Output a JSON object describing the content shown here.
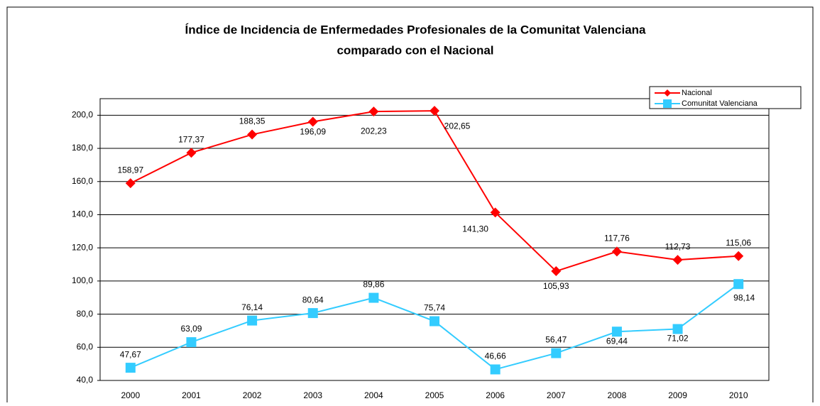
{
  "chart_data": {
    "type": "line",
    "title": "Índice de Incidencia de Enfermedades Profesionales de la Comunitat Valenciana",
    "subtitle": "comparado con el Nacional",
    "categories": [
      "2000",
      "2001",
      "2002",
      "2003",
      "2004",
      "2005",
      "2006",
      "2007",
      "2008",
      "2009",
      "2010"
    ],
    "series": [
      {
        "name": "Nacional",
        "color": "#ff0000",
        "marker": "diamond",
        "values": [
          158.97,
          177.37,
          188.35,
          196.09,
          202.23,
          202.65,
          141.3,
          105.93,
          117.76,
          112.73,
          115.06
        ],
        "value_labels": [
          "158,97",
          "177,37",
          "188,35",
          "196,09",
          "202,23",
          "202,65",
          "141,30",
          "105,93",
          "117,76",
          "112,73",
          "115,06"
        ]
      },
      {
        "name": "Comunitat Valenciana",
        "color": "#33ccff",
        "marker": "square",
        "values": [
          47.67,
          63.09,
          76.14,
          80.64,
          89.86,
          75.74,
          46.66,
          56.47,
          69.44,
          71.02,
          98.14
        ],
        "value_labels": [
          "47,67",
          "63,09",
          "76,14",
          "80,64",
          "89,86",
          "75,74",
          "46,66",
          "56,47",
          "69,44",
          "71,02",
          "98,14"
        ]
      }
    ],
    "ylim": [
      40,
      210
    ],
    "yticks": [
      {
        "value": 40,
        "label": "40,0"
      },
      {
        "value": 60,
        "label": "60,0"
      },
      {
        "value": 80,
        "label": "80,0"
      },
      {
        "value": 100,
        "label": "100,0"
      },
      {
        "value": 120,
        "label": "120,0"
      },
      {
        "value": 140,
        "label": "140,0"
      },
      {
        "value": 160,
        "label": "160,0"
      },
      {
        "value": 180,
        "label": "180,0"
      },
      {
        "value": 200,
        "label": "200,0"
      }
    ],
    "grid": true,
    "legend": "top-right"
  }
}
